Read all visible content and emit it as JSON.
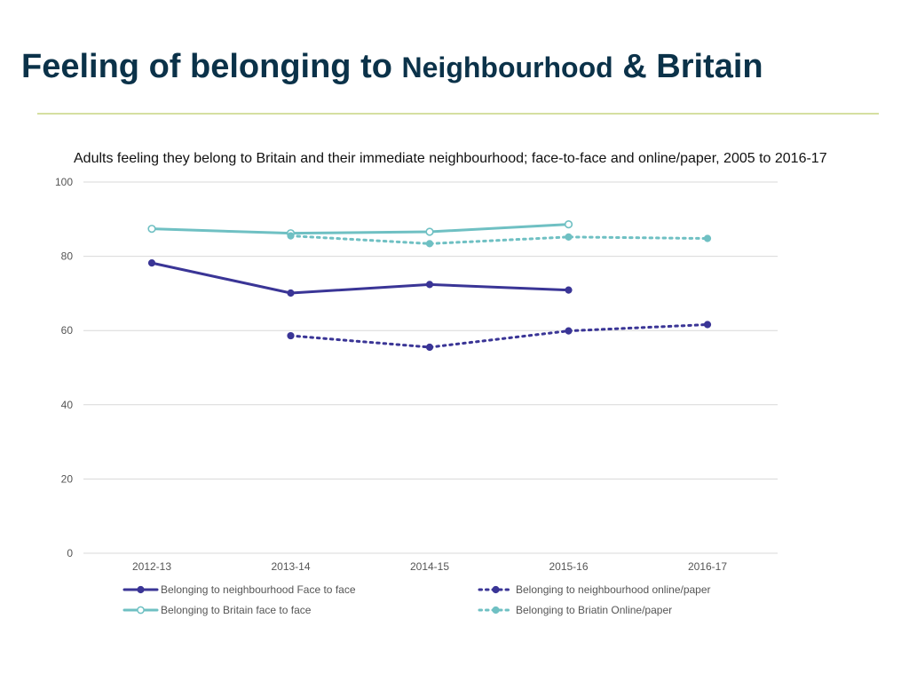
{
  "slide": {
    "title_part1": "Feeling of belonging to ",
    "title_part2": "Neighbourhood",
    "title_part3": " & Britain"
  },
  "colors": {
    "title": "#0b3249",
    "rule": "#d5dfa1",
    "grid": "#d9d9d9"
  },
  "chart_data": {
    "type": "line",
    "title": "Adults feeling they belong to Britain and their immediate neighbourhood; face-to-face and online/paper, 2005 to 2016-17",
    "categories": [
      "2012-13",
      "2013-14",
      "2014-15",
      "2015-16",
      "2016-17"
    ],
    "ylim": [
      0,
      100
    ],
    "yticks": [
      0,
      20,
      40,
      60,
      80,
      100
    ],
    "grid": true,
    "legend_position": "bottom",
    "series": [
      {
        "name": "Belonging to neighbourhood Face to face",
        "values": [
          78.2,
          70.1,
          72.4,
          70.9,
          null
        ],
        "color": "#3a3596",
        "line": "solid",
        "marker": "filled"
      },
      {
        "name": "Belonging to neighbourhood online/paper",
        "values": [
          null,
          58.6,
          55.5,
          59.9,
          61.6
        ],
        "color": "#3a3596",
        "line": "dotted",
        "marker": "filled"
      },
      {
        "name": "Belonging to Britain face to face",
        "values": [
          87.4,
          86.2,
          86.6,
          88.6,
          null
        ],
        "color": "#6fc0c3",
        "line": "solid",
        "marker": "hollow"
      },
      {
        "name": "Belonging to Briatin Online/paper",
        "values": [
          null,
          85.5,
          83.4,
          85.2,
          84.8
        ],
        "color": "#6fc0c3",
        "line": "dotted",
        "marker": "filled"
      }
    ]
  }
}
